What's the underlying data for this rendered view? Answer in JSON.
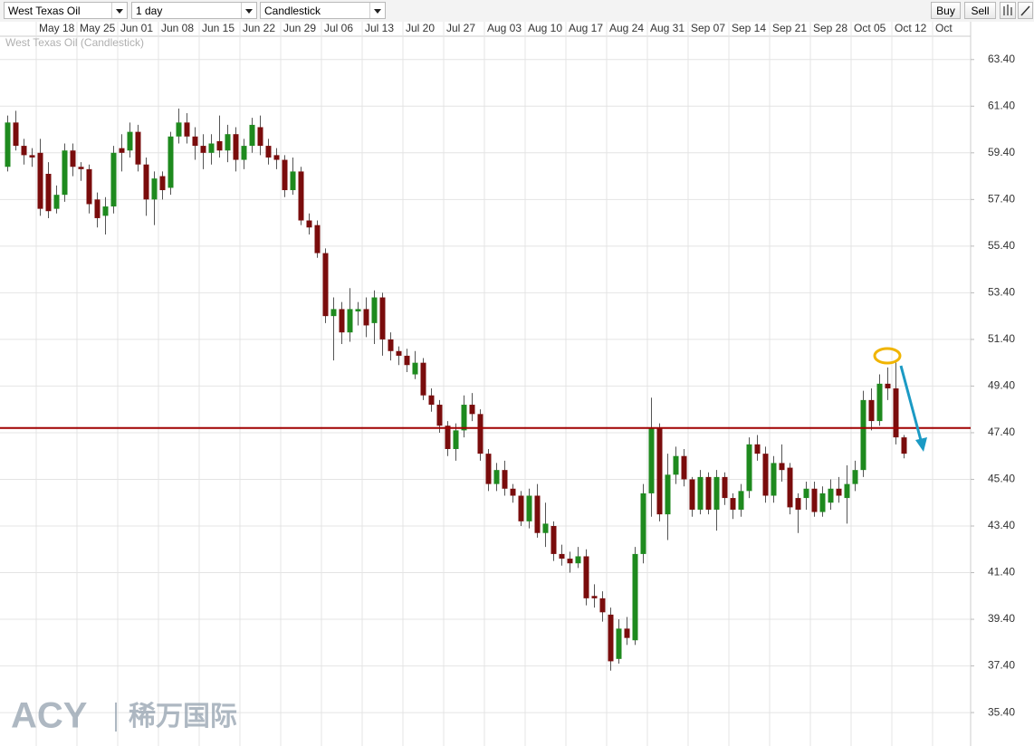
{
  "toolbar": {
    "instrument": "West Texas Oil",
    "interval": "1 day",
    "chart_type": "Candlestick",
    "buy": "Buy",
    "sell": "Sell"
  },
  "chart_data": {
    "type": "candlestick",
    "title": "West Texas Oil (Candlestick)",
    "watermark": {
      "brand": "ACY",
      "name": "稀万国际"
    },
    "categories": [
      null,
      null,
      null,
      null,
      "May 18",
      null,
      null,
      null,
      null,
      "May 25",
      null,
      null,
      null,
      null,
      "Jun 01",
      null,
      null,
      null,
      null,
      "Jun 08",
      null,
      null,
      null,
      null,
      "Jun 15",
      null,
      null,
      null,
      null,
      "Jun 22",
      null,
      null,
      null,
      null,
      "Jun 29",
      null,
      null,
      null,
      null,
      "Jul 06",
      null,
      null,
      null,
      null,
      "Jul 13",
      null,
      null,
      null,
      null,
      "Jul 20",
      null,
      null,
      null,
      null,
      "Jul 27",
      null,
      null,
      null,
      null,
      "Aug 03",
      null,
      null,
      null,
      null,
      "Aug 10",
      null,
      null,
      null,
      null,
      "Aug 17",
      null,
      null,
      null,
      null,
      "Aug 24",
      null,
      null,
      null,
      null,
      "Aug 31",
      null,
      null,
      null,
      null,
      "Sep 07",
      null,
      null,
      null,
      null,
      "Sep 14",
      null,
      null,
      null,
      null,
      "Sep 21",
      null,
      null,
      null,
      null,
      "Sep 28",
      null,
      null,
      null,
      null,
      "Oct 05",
      null,
      null,
      null,
      null,
      "Oct 12",
      null,
      null,
      null,
      null,
      "Oct"
    ],
    "open": [
      58.8,
      60.7,
      59.7,
      59.3,
      59.4,
      58.5,
      57.0,
      57.6,
      59.5,
      58.8,
      58.7,
      57.4,
      56.7,
      57.1,
      59.6,
      59.5,
      60.3,
      58.9,
      57.4,
      58.4,
      57.9,
      60.1,
      60.7,
      60.1,
      59.7,
      59.4,
      59.9,
      59.5,
      60.2,
      59.1,
      59.7,
      60.5,
      59.7,
      59.3,
      59.1,
      57.8,
      58.6,
      56.5,
      56.3,
      55.1,
      52.4,
      52.7,
      51.7,
      52.6,
      52.7,
      52.1,
      53.2,
      51.4,
      50.9,
      50.7,
      49.9,
      50.4,
      49.0,
      48.6,
      47.7,
      46.7,
      47.5,
      48.6,
      48.2,
      46.5,
      45.2,
      45.8,
      45.0,
      44.7,
      43.6,
      44.7,
      43.1,
      43.4,
      42.2,
      42.0,
      41.8,
      42.1,
      40.4,
      40.3,
      39.6,
      37.7,
      39.0,
      38.5,
      42.2,
      44.8,
      47.6,
      43.9,
      45.6,
      46.4,
      45.4,
      44.1,
      45.5,
      44.1,
      45.5,
      44.6,
      44.1,
      44.9,
      46.9,
      46.5,
      44.7,
      46.1,
      45.9,
      44.6,
      44.6,
      45.0,
      44.0,
      44.4,
      45.0,
      44.6,
      45.2,
      45.8,
      48.8,
      47.9,
      49.5,
      49.3,
      47.2,
      null,
      null,
      null,
      null
    ],
    "high": [
      61.0,
      61.2,
      60.0,
      59.6,
      60.0,
      59.0,
      58.0,
      59.8,
      59.8,
      59.0,
      58.9,
      57.7,
      57.5,
      59.7,
      60.2,
      60.7,
      60.6,
      59.2,
      58.6,
      58.6,
      60.3,
      61.3,
      61.1,
      60.5,
      60.2,
      60.2,
      61.0,
      60.6,
      60.5,
      60.0,
      60.9,
      61.0,
      60.0,
      59.6,
      59.3,
      59.2,
      58.8,
      56.8,
      56.5,
      55.3,
      53.2,
      53.0,
      53.6,
      53.0,
      53.2,
      53.5,
      53.4,
      51.7,
      51.1,
      51.0,
      50.9,
      50.6,
      49.3,
      48.8,
      47.9,
      47.8,
      49.0,
      49.1,
      48.4,
      46.7,
      46.1,
      46.2,
      45.2,
      44.9,
      45.0,
      45.2,
      44.4,
      43.6,
      42.6,
      42.3,
      42.5,
      42.4,
      40.9,
      40.6,
      39.9,
      39.4,
      39.5,
      42.5,
      45.2,
      48.9,
      47.8,
      46.5,
      46.8,
      46.7,
      45.5,
      45.8,
      45.7,
      45.8,
      45.7,
      44.8,
      45.2,
      47.2,
      47.3,
      46.8,
      46.4,
      46.9,
      46.1,
      44.8,
      45.3,
      45.3,
      45.1,
      45.4,
      45.5,
      46.0,
      46.2,
      49.2,
      49.3,
      49.9,
      50.2,
      50.4,
      47.3,
      null,
      null,
      null,
      null
    ],
    "low": [
      58.6,
      59.5,
      58.9,
      58.8,
      56.7,
      56.6,
      56.8,
      57.3,
      58.4,
      58.2,
      56.8,
      56.2,
      55.9,
      56.8,
      58.6,
      59.2,
      58.6,
      56.7,
      56.3,
      57.4,
      57.6,
      59.8,
      59.8,
      59.1,
      58.7,
      58.9,
      59.2,
      59.0,
      58.6,
      58.7,
      59.4,
      59.3,
      58.9,
      58.7,
      57.5,
      57.6,
      56.3,
      55.9,
      54.9,
      52.1,
      50.5,
      51.2,
      51.3,
      52.0,
      51.5,
      51.2,
      50.7,
      50.5,
      50.3,
      50.0,
      49.7,
      48.8,
      48.3,
      47.4,
      46.4,
      46.2,
      47.2,
      47.9,
      46.2,
      44.9,
      44.9,
      44.7,
      44.4,
      43.4,
      43.3,
      42.9,
      42.5,
      41.9,
      41.7,
      41.4,
      41.6,
      40.0,
      39.9,
      39.3,
      37.2,
      37.5,
      38.3,
      38.3,
      41.8,
      43.8,
      43.6,
      42.8,
      45.2,
      45.1,
      43.8,
      43.9,
      43.9,
      43.2,
      44.3,
      43.7,
      43.8,
      44.6,
      46.2,
      44.4,
      44.4,
      45.3,
      43.9,
      43.1,
      44.1,
      43.8,
      43.8,
      44.1,
      44.4,
      43.5,
      44.9,
      45.5,
      47.5,
      47.7,
      48.8,
      46.9,
      46.3,
      null,
      null,
      null,
      null
    ],
    "close": [
      60.7,
      59.7,
      59.3,
      59.2,
      57.0,
      56.9,
      57.6,
      59.5,
      58.8,
      58.7,
      57.2,
      56.6,
      57.1,
      59.4,
      59.4,
      60.3,
      58.9,
      57.4,
      58.3,
      57.8,
      60.1,
      60.7,
      60.1,
      59.7,
      59.4,
      59.8,
      59.5,
      60.2,
      59.1,
      59.7,
      60.6,
      59.7,
      59.2,
      59.1,
      57.8,
      58.6,
      56.5,
      56.2,
      55.1,
      52.4,
      52.7,
      51.7,
      52.7,
      52.7,
      52.0,
      53.2,
      51.4,
      50.9,
      50.7,
      50.3,
      50.4,
      49.0,
      48.6,
      47.7,
      46.7,
      47.5,
      48.6,
      48.2,
      46.5,
      45.2,
      45.8,
      45.0,
      44.7,
      43.6,
      44.7,
      43.1,
      43.5,
      42.2,
      42.0,
      41.8,
      42.1,
      40.3,
      40.3,
      39.7,
      37.6,
      39.0,
      38.6,
      42.2,
      44.8,
      47.6,
      43.9,
      45.6,
      46.4,
      45.4,
      44.1,
      45.5,
      44.1,
      45.5,
      44.6,
      44.1,
      44.9,
      46.9,
      46.5,
      44.7,
      46.1,
      45.8,
      44.2,
      44.1,
      45.0,
      44.0,
      44.8,
      45.0,
      44.7,
      45.2,
      45.8,
      48.8,
      47.9,
      49.5,
      49.3,
      47.2,
      46.5,
      null,
      null,
      null,
      null
    ],
    "up_color": "#1e8a1e",
    "down_color": "#7a0c0c",
    "hline": 47.6,
    "hline_color": "#a00000",
    "ylim": [
      34.2,
      64.4
    ],
    "yticks": [
      {
        "value": 35.4,
        "label": "35.40"
      },
      {
        "value": 37.4,
        "label": "37.40"
      },
      {
        "value": 39.4,
        "label": "39.40"
      },
      {
        "value": 41.4,
        "label": "41.40"
      },
      {
        "value": 43.4,
        "label": "43.40"
      },
      {
        "value": 45.4,
        "label": "45.40"
      },
      {
        "value": 47.4,
        "label": "47.40"
      },
      {
        "value": 49.4,
        "label": "49.40"
      },
      {
        "value": 51.4,
        "label": "51.40"
      },
      {
        "value": 53.4,
        "label": "53.40"
      },
      {
        "value": 55.4,
        "label": "55.40"
      },
      {
        "value": 57.4,
        "label": "57.40"
      },
      {
        "value": 59.4,
        "label": "59.40"
      },
      {
        "value": 61.4,
        "label": "61.40"
      },
      {
        "value": 63.4,
        "label": "63.40"
      }
    ],
    "grid": true
  }
}
